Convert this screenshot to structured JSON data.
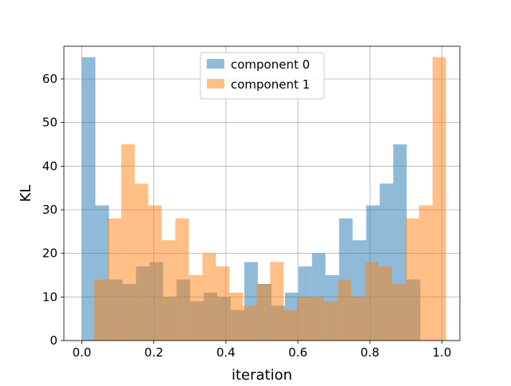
{
  "chart_data": {
    "type": "histogram",
    "xlabel": "iteration",
    "ylabel": "KL",
    "xlim": [
      -0.05,
      1.05
    ],
    "ylim": [
      0,
      67.5
    ],
    "x_ticks": [
      0.0,
      0.2,
      0.4,
      0.6,
      0.8,
      1.0
    ],
    "x_tick_labels": [
      "0.0",
      "0.2",
      "0.4",
      "0.6",
      "0.8",
      "1.0"
    ],
    "y_ticks": [
      0,
      10,
      20,
      30,
      40,
      50,
      60
    ],
    "y_tick_labels": [
      "0",
      "10",
      "20",
      "30",
      "40",
      "50",
      "60"
    ],
    "grid": true,
    "legend_position": "top-center",
    "series": [
      {
        "name": "component 0",
        "color": "#1f77b4",
        "alpha": 0.5,
        "bin_start": 0.0,
        "bin_width": 0.0376,
        "values": [
          65,
          31,
          14,
          13,
          17,
          18,
          10,
          14,
          9,
          11,
          10,
          7,
          18,
          13,
          8,
          11,
          17,
          20,
          15,
          28,
          23,
          31,
          36,
          45,
          14
        ]
      },
      {
        "name": "component 1",
        "color": "#ff7f0e",
        "alpha": 0.5,
        "bin_start": 0.034,
        "bin_width": 0.0376,
        "values": [
          14,
          28,
          45,
          36,
          31,
          23,
          28,
          15,
          20,
          17,
          11,
          8,
          13,
          18,
          7,
          10,
          10,
          9,
          14,
          10,
          18,
          17,
          13,
          28,
          31,
          65
        ]
      }
    ]
  }
}
